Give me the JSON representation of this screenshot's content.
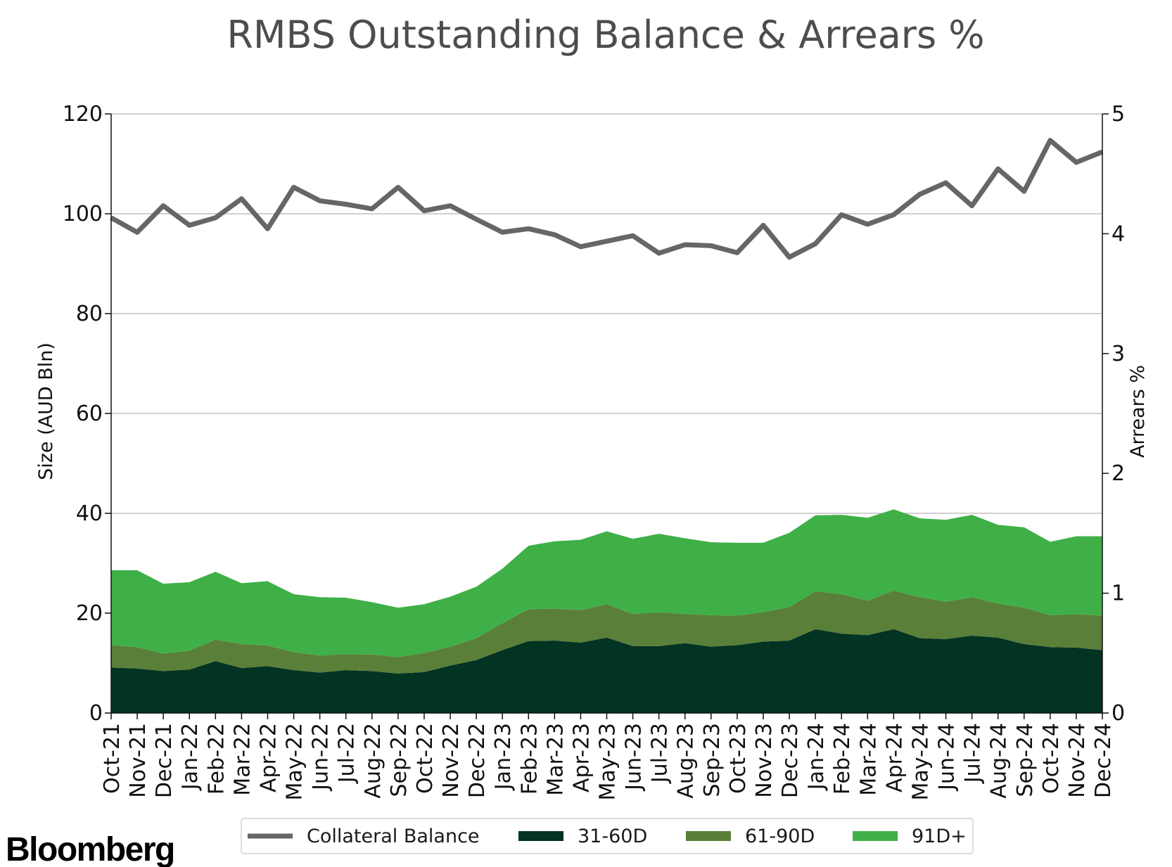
{
  "brand": "Bloomberg",
  "colors": {
    "collateral": "#666666",
    "d31_60": "#033322",
    "d61_90": "#5a7f38",
    "d91_plus": "#3fb047",
    "grid": "#b3b3b3",
    "title": "#4d4d4d"
  },
  "chart_data": {
    "type": "area",
    "title": "RMBS Outstanding Balance & Arrears %",
    "ylabel": "Size (AUD Bln)",
    "y2label": "Arrears %",
    "ylim": [
      0,
      120
    ],
    "y_ticks": [
      "0",
      "20",
      "40",
      "60",
      "80",
      "100",
      "120"
    ],
    "y2lim": [
      0,
      5
    ],
    "y2_ticks": [
      "0",
      "1",
      "2",
      "3",
      "4",
      "5"
    ],
    "grid": "horizontal",
    "legend_position": "bottom-center",
    "categories": [
      "Oct-21",
      "Nov-21",
      "Dec-21",
      "Jan-22",
      "Feb-22",
      "Mar-22",
      "Apr-22",
      "May-22",
      "Jun-22",
      "Jul-22",
      "Aug-22",
      "Sep-22",
      "Oct-22",
      "Nov-22",
      "Dec-22",
      "Jan-23",
      "Feb-23",
      "Mar-23",
      "Apr-23",
      "May-23",
      "Jun-23",
      "Jul-23",
      "Aug-23",
      "Sep-23",
      "Oct-23",
      "Nov-23",
      "Dec-23",
      "Jan-24",
      "Feb-24",
      "Mar-24",
      "Apr-24",
      "May-24",
      "Jun-24",
      "Jul-24",
      "Aug-24",
      "Sep-24",
      "Oct-24",
      "Nov-24",
      "Dec-24"
    ],
    "series": [
      {
        "name": "Collateral Balance",
        "kind": "line",
        "axis": "left",
        "values": [
          99.2,
          96.3,
          101.6,
          97.7,
          99.2,
          103.0,
          97.0,
          105.3,
          102.6,
          101.9,
          101.0,
          105.3,
          100.6,
          101.6,
          98.9,
          96.3,
          97.0,
          95.8,
          93.4,
          94.5,
          95.6,
          92.1,
          93.8,
          93.6,
          92.2,
          97.7,
          91.3,
          94.0,
          99.8,
          97.9,
          99.8,
          103.9,
          106.2,
          101.6,
          109.0,
          104.5,
          114.7,
          110.3,
          112.4
        ]
      },
      {
        "name": "31-60D",
        "kind": "area",
        "axis": "left",
        "values": [
          9.1,
          8.9,
          8.4,
          8.7,
          10.4,
          9.0,
          9.4,
          8.6,
          8.1,
          8.6,
          8.4,
          7.9,
          8.2,
          9.5,
          10.6,
          12.6,
          14.4,
          14.5,
          14.1,
          15.1,
          13.4,
          13.4,
          14.0,
          13.3,
          13.6,
          14.3,
          14.5,
          16.8,
          15.9,
          15.6,
          16.8,
          15.0,
          14.8,
          15.5,
          15.1,
          13.8,
          13.2,
          13.1,
          12.6
        ]
      },
      {
        "name": "61-90D",
        "kind": "area",
        "axis": "left",
        "values": [
          4.5,
          4.3,
          3.5,
          3.8,
          4.3,
          4.8,
          4.1,
          3.6,
          3.4,
          3.2,
          3.3,
          3.3,
          3.8,
          3.8,
          4.4,
          5.4,
          6.4,
          6.4,
          6.5,
          6.7,
          6.4,
          6.8,
          5.8,
          6.3,
          5.9,
          5.9,
          6.7,
          7.6,
          7.9,
          6.9,
          7.7,
          8.2,
          7.5,
          7.7,
          6.8,
          7.3,
          6.4,
          6.7,
          6.9
        ]
      },
      {
        "name": "91D+",
        "kind": "area",
        "axis": "left",
        "values": [
          15.0,
          15.4,
          14.0,
          13.7,
          13.6,
          12.2,
          12.9,
          11.6,
          11.7,
          11.3,
          10.5,
          9.9,
          9.8,
          10.0,
          10.3,
          10.9,
          12.7,
          13.5,
          14.1,
          14.6,
          15.1,
          15.7,
          15.2,
          14.6,
          14.6,
          13.9,
          14.9,
          15.2,
          15.9,
          16.6,
          16.3,
          15.8,
          16.4,
          16.5,
          15.8,
          16.1,
          14.7,
          15.6,
          15.9
        ]
      }
    ]
  }
}
